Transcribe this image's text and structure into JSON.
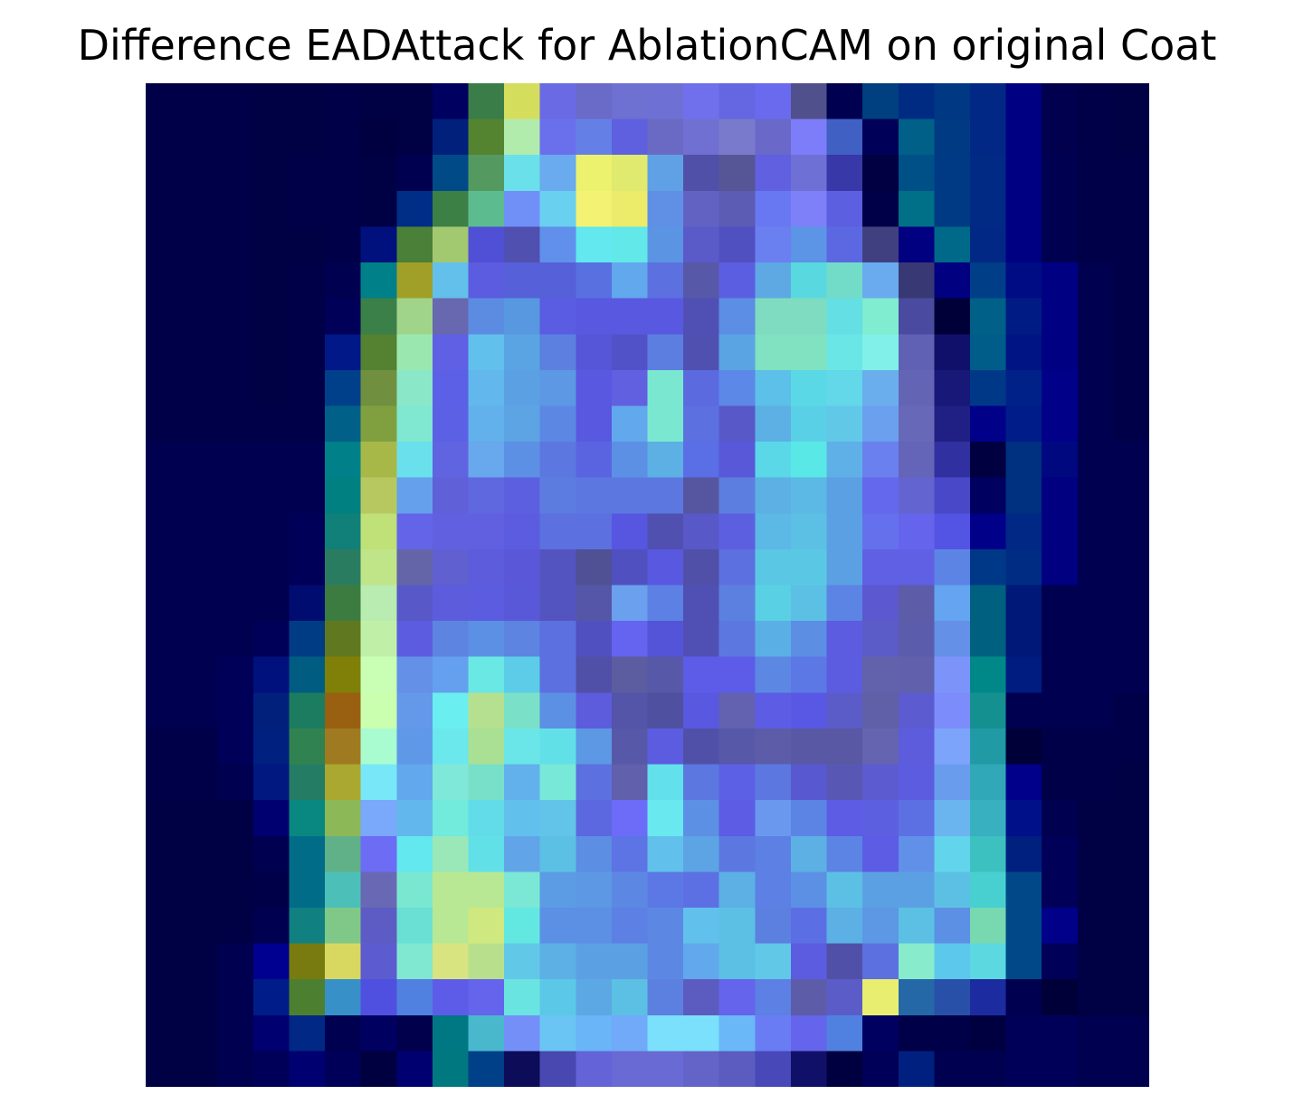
{
  "chart_data": {
    "type": "heatmap",
    "title": "Difference EADAttack for AblationCAM on original Coat",
    "xlabel": "",
    "ylabel": "",
    "axes_visible": false,
    "grid": false,
    "legend": "none",
    "colormap": "jet overlay on grayscale image",
    "rows": 28,
    "cols": 28,
    "cells": [
      [
        "#000048",
        "#000048",
        "#000048",
        "#000045",
        "#000045",
        "#000048",
        "#000045",
        "#000045",
        "#000060",
        "#3a7d48",
        "#d4dd5c",
        "#6a6ae4",
        "#6a6ac8",
        "#6e70d2",
        "#6e70d4",
        "#7070ec",
        "#6466e2",
        "#6a6aee",
        "#50508c",
        "#000050",
        "#003f80",
        "#002b83",
        "#003883",
        "#002884",
        "#000083",
        "#00004e",
        "#000048",
        "#000045"
      ],
      [
        "#000048",
        "#000048",
        "#000048",
        "#000045",
        "#000045",
        "#000048",
        "#000040",
        "#000045",
        "#00207c",
        "#548430",
        "#b2ecac",
        "#6a70ec",
        "#6480e6",
        "#5e60e0",
        "#6a6ac4",
        "#7070d2",
        "#7a7acc",
        "#6a68c8",
        "#7d7dfa",
        "#4060c4",
        "#000058",
        "#006088",
        "#003a83",
        "#002884",
        "#000083",
        "#00004e",
        "#000048",
        "#000045"
      ],
      [
        "#000048",
        "#000048",
        "#000048",
        "#000045",
        "#000048",
        "#000048",
        "#000045",
        "#000050",
        "#004a88",
        "#549a60",
        "#6ae0ea",
        "#6aaaee",
        "#ecf26e",
        "#e0ea6e",
        "#60a0e4",
        "#5050a8",
        "#565696",
        "#6060e0",
        "#6e70d6",
        "#3838a8",
        "#000042",
        "#005088",
        "#003a84",
        "#002a84",
        "#000083",
        "#000050",
        "#000048",
        "#000048"
      ],
      [
        "#000048",
        "#000048",
        "#000048",
        "#000045",
        "#000048",
        "#000048",
        "#000045",
        "#002d85",
        "#3c8045",
        "#5cbc90",
        "#7090f8",
        "#6ad0f0",
        "#f4f272",
        "#eceb6a",
        "#6090e6",
        "#6262c2",
        "#5c5cb4",
        "#6878f2",
        "#7e80fa",
        "#5c60e0",
        "#000048",
        "#007088",
        "#003a84",
        "#002a84",
        "#000083",
        "#000050",
        "#000048",
        "#000048"
      ],
      [
        "#000048",
        "#000048",
        "#000048",
        "#000045",
        "#000045",
        "#000048",
        "#00107c",
        "#4a8038",
        "#a2c870",
        "#5050d6",
        "#5050b0",
        "#6090ec",
        "#62e8ee",
        "#62e8e8",
        "#5c94e4",
        "#5a5ac8",
        "#5050c0",
        "#6a80f0",
        "#5c94e6",
        "#5c68e2",
        "#404080",
        "#000080",
        "#006888",
        "#002884",
        "#000083",
        "#000050",
        "#000048",
        "#000048"
      ],
      [
        "#000048",
        "#000048",
        "#000048",
        "#000045",
        "#000048",
        "#000050",
        "#008088",
        "#a0a028",
        "#62c0ea",
        "#5c5ce0",
        "#5660d8",
        "#5660d8",
        "#5870e0",
        "#62a8ec",
        "#5c70e0",
        "#5858a8",
        "#5c5ee2",
        "#5ea8e4",
        "#5ad8e0",
        "#72dcc8",
        "#6aaaee",
        "#383874",
        "#000080",
        "#003e88",
        "#000c84",
        "#000083",
        "#000050",
        "#000048"
      ],
      [
        "#000048",
        "#000048",
        "#000048",
        "#000045",
        "#000048",
        "#000058",
        "#3a8048",
        "#a0d48a",
        "#6868b0",
        "#5c8ce2",
        "#5898e0",
        "#5a5ce2",
        "#5858e0",
        "#5858e0",
        "#5858e0",
        "#5050b4",
        "#5c8ee6",
        "#80dcc0",
        "#80dcc0",
        "#64e0e4",
        "#80ecd0",
        "#4a4aa0",
        "#000038",
        "#006088",
        "#001c84",
        "#000083",
        "#000050",
        "#000048"
      ],
      [
        "#000048",
        "#000048",
        "#000048",
        "#000045",
        "#000048",
        "#001888",
        "#548230",
        "#9ae8b0",
        "#6060e4",
        "#62c0ec",
        "#5aa4e4",
        "#5c80e0",
        "#5656d8",
        "#5252c8",
        "#5c7ee0",
        "#5050b0",
        "#5aa4e4",
        "#80e2c0",
        "#80e2c0",
        "#6ae6e6",
        "#80f0e8",
        "#6060b4",
        "#10106a",
        "#005c88",
        "#001484",
        "#000083",
        "#000050",
        "#000048"
      ],
      [
        "#000048",
        "#000048",
        "#000048",
        "#000045",
        "#000048",
        "#00408a",
        "#709040",
        "#8ae8c8",
        "#5c60e6",
        "#62b8ec",
        "#5ca0e4",
        "#5c98e4",
        "#5858e0",
        "#6060e0",
        "#7ae8d0",
        "#5c6ae0",
        "#5c88e8",
        "#5cc0e8",
        "#5ad8e6",
        "#62d8e8",
        "#6aaeee",
        "#6464b4",
        "#181878",
        "#003888",
        "#002288",
        "#000088",
        "#000050",
        "#000048"
      ],
      [
        "#000048",
        "#000048",
        "#000048",
        "#000048",
        "#000048",
        "#006088",
        "#80a040",
        "#80e8d0",
        "#5c60e4",
        "#62b0ec",
        "#5ca4e4",
        "#5c88e4",
        "#5858e0",
        "#62a8ec",
        "#7ae8d0",
        "#5c70e0",
        "#5858c8",
        "#5cb0e4",
        "#5ad0e6",
        "#62c8e8",
        "#6aa0ee",
        "#6868b8",
        "#202084",
        "#000088",
        "#001c88",
        "#000088",
        "#000050",
        "#000048"
      ],
      [
        "#000050",
        "#000050",
        "#000050",
        "#000050",
        "#000050",
        "#008088",
        "#a8b848",
        "#6ae0ec",
        "#6064e0",
        "#68a8ec",
        "#5c90e4",
        "#5c78e0",
        "#5a64e0",
        "#5c90e4",
        "#5cb0e4",
        "#5a6ee6",
        "#5858d8",
        "#5ad8e8",
        "#5ae8e6",
        "#60b0e8",
        "#6a80ee",
        "#6464b8",
        "#3030a0",
        "#000040",
        "#003080",
        "#000880",
        "#000050",
        "#000050"
      ],
      [
        "#000050",
        "#000050",
        "#000050",
        "#000050",
        "#000050",
        "#008080",
        "#b8c860",
        "#64a0ec",
        "#6060d8",
        "#6068e0",
        "#5c60e0",
        "#5c7ce0",
        "#5c78e0",
        "#5c78e0",
        "#5c78e0",
        "#5656a0",
        "#5c7ee0",
        "#5cb0e4",
        "#5cb8e4",
        "#5ca0e4",
        "#6468ec",
        "#6464d0",
        "#4848c8",
        "#000060",
        "#003080",
        "#000080",
        "#000050",
        "#000050"
      ],
      [
        "#000050",
        "#000050",
        "#000050",
        "#000050",
        "#000058",
        "#108078",
        "#c0e078",
        "#6464e8",
        "#6060e0",
        "#6060e0",
        "#5c5ce0",
        "#5c70e0",
        "#5c70e0",
        "#5656e0",
        "#5050b0",
        "#5858c8",
        "#5c60e0",
        "#5cb8e4",
        "#5cc0e4",
        "#5ca0e4",
        "#6470ec",
        "#6464ec",
        "#5454e4",
        "#000088",
        "#002884",
        "#000080",
        "#000050",
        "#000050"
      ],
      [
        "#000050",
        "#000050",
        "#000050",
        "#000050",
        "#000058",
        "#2a7c60",
        "#c0e488",
        "#6464a8",
        "#6060d0",
        "#5c5cdc",
        "#5a58d8",
        "#5454c0",
        "#505094",
        "#5050c0",
        "#5858e0",
        "#5050a8",
        "#5c70e0",
        "#5ac8e4",
        "#5ac8e4",
        "#5ca0e4",
        "#6060e4",
        "#6060e4",
        "#5c84e4",
        "#003888",
        "#002c84",
        "#000080",
        "#000050",
        "#000050"
      ],
      [
        "#000050",
        "#000050",
        "#000050",
        "#000050",
        "#000c70",
        "#3c7c40",
        "#b8ecb0",
        "#5858c8",
        "#5c5cdc",
        "#5c5ce0",
        "#5858d8",
        "#5454c0",
        "#5656a8",
        "#6aa0ee",
        "#5c80e4",
        "#5050b4",
        "#5c80e0",
        "#5ad0e4",
        "#5cc0e4",
        "#5c84e4",
        "#5c58d0",
        "#5c5ca8",
        "#64a4f0",
        "#006080",
        "#001878",
        "#000050",
        "#000050",
        "#000050"
      ],
      [
        "#000050",
        "#000050",
        "#000050",
        "#000058",
        "#003c84",
        "#607820",
        "#c0f0a8",
        "#5c5ce0",
        "#5c84e0",
        "#5c90e4",
        "#5c84e0",
        "#5c70e0",
        "#5050c0",
        "#6464f0",
        "#5454d8",
        "#5050b4",
        "#5c78e0",
        "#5ab0e4",
        "#5c8ee4",
        "#5c5ce0",
        "#5c5cc8",
        "#5c5cac",
        "#6490e8",
        "#006080",
        "#001878",
        "#000050",
        "#000050",
        "#000050"
      ],
      [
        "#000050",
        "#000050",
        "#000058",
        "#00107c",
        "#005c80",
        "#808008",
        "#c8ffb4",
        "#6490e8",
        "#64a0ee",
        "#6ae8e4",
        "#5ccce8",
        "#5c70e0",
        "#5050a8",
        "#5c5ca0",
        "#5858a8",
        "#5c5ce8",
        "#5c5ce8",
        "#5c88e4",
        "#5c78e4",
        "#5c5ce0",
        "#6262ac",
        "#6060ac",
        "#7c94fa",
        "#008888",
        "#001c80",
        "#000050",
        "#000050",
        "#000050"
      ],
      [
        "#000050",
        "#000050",
        "#000058",
        "#00207c",
        "#1c7c60",
        "#986010",
        "#caffb0",
        "#6498e8",
        "#6aeef0",
        "#b4e090",
        "#7ae0c8",
        "#5c90e4",
        "#5c5cdc",
        "#5454a8",
        "#5050a0",
        "#5858e0",
        "#6262b0",
        "#5c5ce4",
        "#5858e4",
        "#5c5cc8",
        "#6060a8",
        "#5c5cd0",
        "#7c8cfa",
        "#149090",
        "#000050",
        "#000050",
        "#000050",
        "#000048"
      ],
      [
        "#000048",
        "#000048",
        "#000058",
        "#002080",
        "#308250",
        "#a07a20",
        "#a8fcd0",
        "#6098e8",
        "#6ae8ec",
        "#aae094",
        "#6ae6e8",
        "#62e0e8",
        "#5c98e4",
        "#5858a8",
        "#5c5ce0",
        "#5050a8",
        "#5858a8",
        "#5c5ca8",
        "#5858a4",
        "#5858a4",
        "#6464b0",
        "#5c5cdc",
        "#7ca4fa",
        "#209aa4",
        "#000038",
        "#000048",
        "#000048",
        "#000048"
      ],
      [
        "#000048",
        "#000048",
        "#000050",
        "#001880",
        "#247c64",
        "#aaa830",
        "#78e8f8",
        "#62a8ec",
        "#80e8d8",
        "#78e0c8",
        "#62b0ec",
        "#78e8d8",
        "#5c70e0",
        "#6060ac",
        "#62e0ec",
        "#5c78e0",
        "#5c60e4",
        "#5c78e0",
        "#5858d0",
        "#5858b4",
        "#5c5cd0",
        "#5c5ce0",
        "#6a9cee",
        "#30a8b8",
        "#00008a",
        "#000048",
        "#000048",
        "#000045"
      ],
      [
        "#000045",
        "#000045",
        "#000045",
        "#000070",
        "#088880",
        "#8cb858",
        "#7aa8fa",
        "#62b8ec",
        "#72eadc",
        "#62dce8",
        "#62c0ec",
        "#62c4e8",
        "#5c68e0",
        "#6c6cf8",
        "#6ae8f0",
        "#5c90e4",
        "#5c5ce4",
        "#6a98ee",
        "#5c84e4",
        "#5c5ce4",
        "#5c60e0",
        "#5c70e4",
        "#6ab4f0",
        "#38b0c0",
        "#001088",
        "#000050",
        "#000045",
        "#000045"
      ],
      [
        "#000045",
        "#000045",
        "#000045",
        "#000050",
        "#006c88",
        "#60b088",
        "#6c6cf4",
        "#62e8ee",
        "#9ae8b8",
        "#62e0e8",
        "#62a4e8",
        "#5cc0e4",
        "#5c8ee4",
        "#5c74e4",
        "#62c0ec",
        "#5ca4e4",
        "#5c78e0",
        "#5c80e4",
        "#5cb0e4",
        "#5c84e4",
        "#5c5ce4",
        "#6090e8",
        "#62d4ec",
        "#3cc0c0",
        "#002080",
        "#000058",
        "#000045",
        "#000045"
      ],
      [
        "#000045",
        "#000045",
        "#000045",
        "#000048",
        "#006c88",
        "#4cc0b8",
        "#6868b4",
        "#7ae8d0",
        "#b8e894",
        "#b8e894",
        "#7ae8d4",
        "#5c9ce4",
        "#5c98e4",
        "#5c88e4",
        "#5c78e4",
        "#5c70e4",
        "#5cb0e4",
        "#5c80e4",
        "#5c90e4",
        "#5cc0e4",
        "#5ca0e4",
        "#5ca0e4",
        "#5cc0e4",
        "#48d0d0",
        "#004888",
        "#000058",
        "#000045",
        "#000045"
      ],
      [
        "#000045",
        "#000045",
        "#000045",
        "#000050",
        "#108080",
        "#80c888",
        "#5c5cc4",
        "#6ae0d4",
        "#b8e894",
        "#d0e880",
        "#62e8e0",
        "#5c90e4",
        "#5c90e4",
        "#5c80e4",
        "#5c88e4",
        "#62c0ec",
        "#5cc0e4",
        "#5c80e0",
        "#5c6ee4",
        "#5cb0e4",
        "#5c98e4",
        "#5cc0e4",
        "#5c90e4",
        "#78d8b0",
        "#004888",
        "#000088",
        "#000045",
        "#000045"
      ],
      [
        "#000045",
        "#000045",
        "#000050",
        "#000090",
        "#787c10",
        "#d8d860",
        "#5c5cd0",
        "#80e8d0",
        "#d8e480",
        "#b8e08c",
        "#62c8e8",
        "#5cb0e4",
        "#5ca0e4",
        "#5ca0e4",
        "#5c88e4",
        "#62a8ec",
        "#5cc0e4",
        "#62c8e8",
        "#5c5ce0",
        "#5050a8",
        "#5c70e0",
        "#88eccc",
        "#5cc8ec",
        "#5cd8e0",
        "#004888",
        "#000058",
        "#000045",
        "#000045"
      ],
      [
        "#000045",
        "#000045",
        "#000050",
        "#001c88",
        "#4c8030",
        "#3890c8",
        "#5050e0",
        "#5080e0",
        "#5c5ce8",
        "#6464ec",
        "#6ae4e0",
        "#5cc8e8",
        "#5ca8e4",
        "#5cc0e4",
        "#5c80e0",
        "#5c5cc0",
        "#6464ec",
        "#5c80e4",
        "#5c5ca8",
        "#5c5cc8",
        "#e8ef70",
        "#2468a8",
        "#2850a8",
        "#1c2ca0",
        "#000050",
        "#000038",
        "#000045",
        "#000045"
      ],
      [
        "#000045",
        "#000045",
        "#000050",
        "#000070",
        "#002884",
        "#000050",
        "#000060",
        "#00004c",
        "#007884",
        "#4ab8cc",
        "#7490f8",
        "#6ac4f4",
        "#6ab4f8",
        "#70aaf8",
        "#7ae0fc",
        "#7ae0fc",
        "#6ab8f8",
        "#6a7cf4",
        "#6464ec",
        "#5080e0",
        "#000060",
        "#000048",
        "#000048",
        "#000040",
        "#000058",
        "#000058",
        "#000050",
        "#000050"
      ],
      [
        "#000045",
        "#000045",
        "#000050",
        "#000058",
        "#000070",
        "#000058",
        "#000040",
        "#000070",
        "#007880",
        "#004088",
        "#0c0c58",
        "#4848b0",
        "#6464d8",
        "#6a6ad4",
        "#6a6ad4",
        "#6464c8",
        "#5c5cc0",
        "#4848b8",
        "#101068",
        "#000040",
        "#000058",
        "#002080",
        "#000050",
        "#000050",
        "#000058",
        "#000058",
        "#000050",
        "#000050"
      ]
    ]
  }
}
